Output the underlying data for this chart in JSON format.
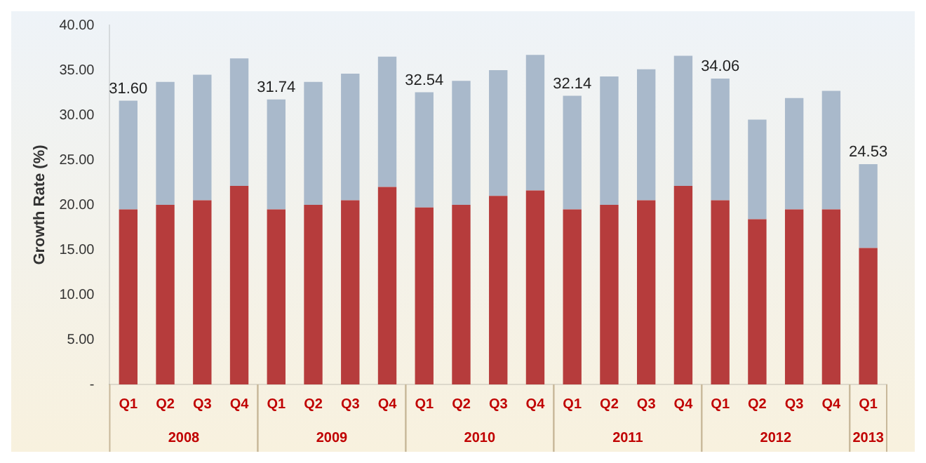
{
  "chart_data": {
    "type": "bar",
    "ylabel": "Growth Rate (%)",
    "stacked": true,
    "categories": [
      "Q1",
      "Q2",
      "Q3",
      "Q4",
      "Q1",
      "Q2",
      "Q3",
      "Q4",
      "Q1",
      "Q2",
      "Q3",
      "Q4",
      "Q1",
      "Q2",
      "Q3",
      "Q4",
      "Q1",
      "Q2",
      "Q3",
      "Q4",
      "Q1"
    ],
    "series": [
      {
        "color": "#b63c3c",
        "values": [
          19.5,
          20.0,
          20.5,
          22.1,
          19.5,
          20.0,
          20.5,
          22.0,
          19.7,
          20.0,
          21.0,
          21.6,
          19.5,
          20.0,
          20.5,
          22.1,
          20.5,
          18.4,
          19.5,
          19.5,
          15.2
        ]
      },
      {
        "color": "#a9b9cb",
        "values": [
          12.1,
          13.7,
          14.0,
          14.2,
          12.24,
          13.7,
          14.1,
          14.5,
          12.84,
          13.8,
          14.0,
          15.1,
          12.64,
          14.3,
          14.6,
          14.5,
          13.56,
          11.1,
          12.4,
          13.2,
          9.33
        ]
      }
    ],
    "totals": [
      "31.60",
      null,
      null,
      null,
      "31.74",
      null,
      null,
      null,
      "32.54",
      null,
      null,
      null,
      "32.14",
      null,
      null,
      null,
      "34.06",
      null,
      null,
      null,
      "24.53"
    ],
    "annotations": [
      "2008",
      "2009",
      "2010",
      "2011",
      "2012",
      "2013"
    ],
    "ylim": [
      0,
      40
    ],
    "yticks": [
      {
        "value": 0,
        "label": "-"
      },
      {
        "value": 5,
        "label": "5.00"
      },
      {
        "value": 10,
        "label": "10.00"
      },
      {
        "value": 15,
        "label": "15.00"
      },
      {
        "value": 20,
        "label": "20.00"
      },
      {
        "value": 25,
        "label": "25.00"
      },
      {
        "value": 30,
        "label": "30.00"
      },
      {
        "value": 35,
        "label": "35.00"
      },
      {
        "value": 40,
        "label": "40.00"
      }
    ],
    "grid": false,
    "legend": false
  }
}
